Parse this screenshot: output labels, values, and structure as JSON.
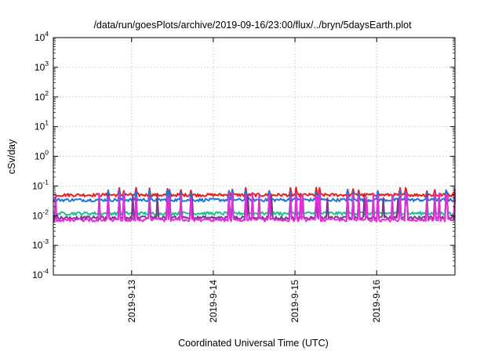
{
  "chart_data": {
    "type": "line",
    "title": "/data/run/goesPlots/archive/2019-09-16/23:00/flux/../bryn/5daysEarth.plot",
    "xlabel": "Coordinated Universal Time (UTC)",
    "ylabel": "cSv/day",
    "y_scale": "log",
    "ylim": [
      0.0001,
      10000
    ],
    "y_ticks": [
      {
        "base": "10",
        "exp": "-4"
      },
      {
        "base": "10",
        "exp": "-3"
      },
      {
        "base": "10",
        "exp": "-2"
      },
      {
        "base": "10",
        "exp": "-1"
      },
      {
        "base": "10",
        "exp": "0"
      },
      {
        "base": "10",
        "exp": "1"
      },
      {
        "base": "10",
        "exp": "2"
      },
      {
        "base": "10",
        "exp": "3"
      },
      {
        "base": "10",
        "exp": "4"
      }
    ],
    "xlim": [
      "2019-09-12 01:00",
      "2019-09-16 23:00"
    ],
    "x_ticks": [
      "2019-9-13",
      "2019-9-14",
      "2019-9-15",
      "2019-9-16"
    ],
    "grid": true,
    "series": [
      {
        "color": "#e8211e",
        "base": 0.05,
        "spike": 0.075
      },
      {
        "color": "#1f77d8",
        "base": 0.034,
        "spike": 0.065
      },
      {
        "color": "#20bf94",
        "base": 0.012,
        "spike": 0.035
      },
      {
        "color": "#7a3a8a",
        "base": 0.0085,
        "spike": 0.045
      },
      {
        "color": "#e02ed8",
        "base": 0.0072,
        "spike": 0.05
      }
    ]
  }
}
